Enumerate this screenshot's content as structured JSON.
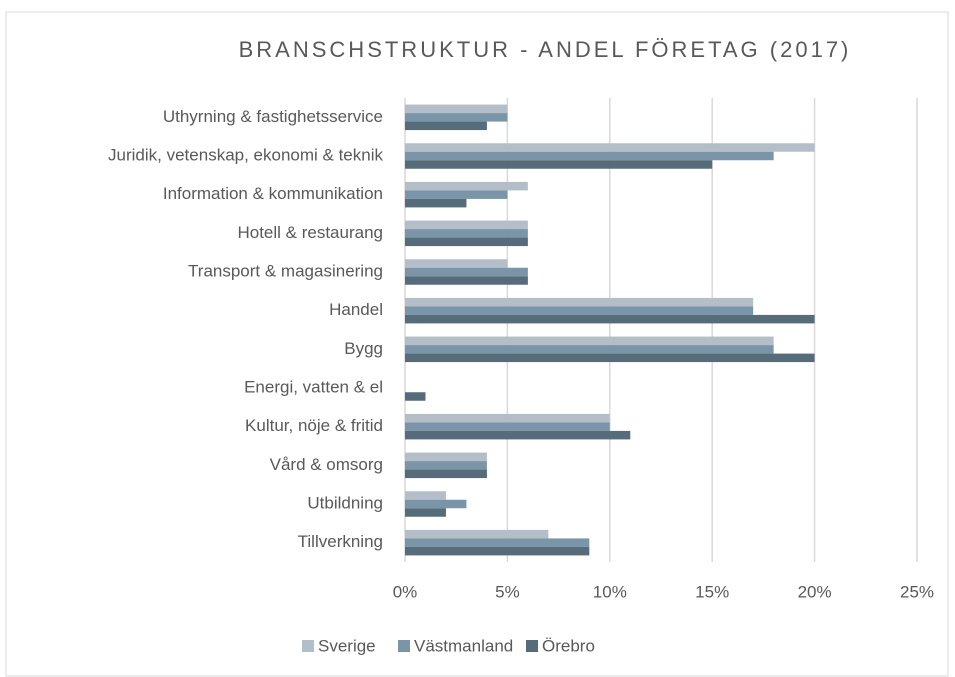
{
  "chart_data": {
    "type": "hbar",
    "title": "BRANSCHSTRUKTUR - ANDEL FÖRETAG (2017)",
    "categories": [
      "Uthyrning & fastighetsservice",
      "Juridik, vetenskap, ekonomi & teknik",
      "Information & kommunikation",
      "Hotell & restaurang",
      "Transport & magasinering",
      "Handel",
      "Bygg",
      "Energi, vatten & el",
      "Kultur, nöje & fritid",
      "Vård & omsorg",
      "Utbildning",
      "Tillverkning"
    ],
    "series": [
      {
        "name": "Sverige",
        "color": "#b4bec8",
        "values": [
          5,
          20,
          6,
          6,
          5,
          17,
          18,
          0,
          10,
          4,
          2,
          7
        ]
      },
      {
        "name": "Västmanland",
        "color": "#7a95a8",
        "values": [
          5,
          18,
          5,
          6,
          6,
          17,
          18,
          0,
          10,
          4,
          3,
          9
        ]
      },
      {
        "name": "Örebro",
        "color": "#566c7b",
        "values": [
          4,
          15,
          3,
          6,
          6,
          20,
          20,
          1,
          11,
          4,
          2,
          9
        ]
      }
    ],
    "xlim": [
      0,
      25
    ],
    "xticks": [
      {
        "value": 0,
        "label": "0%"
      },
      {
        "value": 5,
        "label": "5%"
      },
      {
        "value": 10,
        "label": "10%"
      },
      {
        "value": 15,
        "label": "15%"
      },
      {
        "value": 20,
        "label": "20%"
      },
      {
        "value": 25,
        "label": "25%"
      }
    ],
    "grid": true,
    "legend": "bottom"
  }
}
